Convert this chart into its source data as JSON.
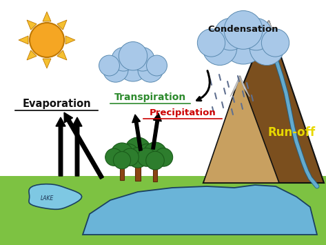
{
  "bg_color": "#ffffff",
  "grass_color": "#7dc242",
  "water_color": "#6ab4d8",
  "lake_color": "#7ec8e3",
  "mountain_color": "#7b4f1e",
  "mountain_outline": "#111111",
  "snow_color": "#d8d8d8",
  "river_color": "#6ab4d8",
  "sun_body_color": "#f5a623",
  "sun_ray_color": "#f5c030",
  "cloud_color": "#a8c8e8",
  "cloud_outline": "#5a8ab0",
  "tree_foliage": "#2d7d2d",
  "tree_trunk": "#8B4513",
  "arrow_color": "#111111",
  "condensation_text": "Condensation",
  "transpiration_text": "Transpiration",
  "evaporation_text": "Evaporation",
  "precipitation_text": "Precipitation",
  "runoff_text": "Run-off",
  "lake_text": "LAKE",
  "condensation_color": "#111111",
  "transpiration_color": "#2d8a2d",
  "evaporation_color": "#111111",
  "precipitation_color": "#cc0000",
  "runoff_color": "#e8d800",
  "rain_color": "#607090"
}
